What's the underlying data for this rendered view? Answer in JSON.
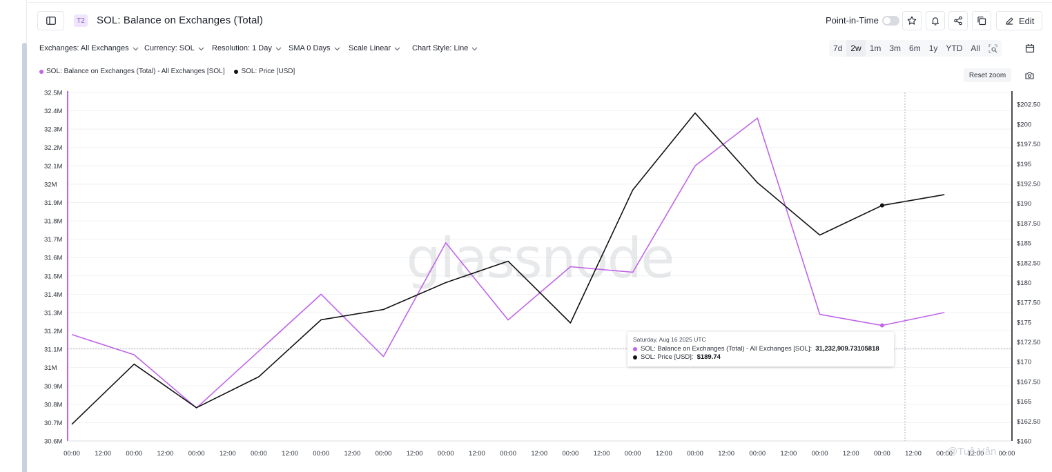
{
  "header": {
    "tier_badge": "T2",
    "title": "SOL: Balance on Exchanges (Total)",
    "point_in_time_label": "Point-in-Time",
    "edit_label": "Edit"
  },
  "toolbar": {
    "exchanges": "Exchanges: All Exchanges",
    "currency": "Currency: SOL",
    "resolution": "Resolution: 1 Day",
    "sma": "SMA 0 Days",
    "scale": "Scale Linear",
    "chart_style": "Chart Style: Line",
    "ranges": [
      "7d",
      "2w",
      "1m",
      "3m",
      "6m",
      "1y",
      "YTD",
      "All"
    ],
    "active_range": "2w"
  },
  "reset_zoom_label": "Reset zoom",
  "watermark": "glassnode",
  "credit": "@Tuệ Vân",
  "tooltip": {
    "date": "Saturday, Aug 16 2025 UTC",
    "balance_label": "SOL: Balance on Exchanges (Total) - All Exchanges [SOL]:",
    "balance_value": "31,232,909.73105818",
    "price_label": "SOL: Price [USD]:",
    "price_value": "$189.74"
  },
  "colors": {
    "balance": "#c064e8",
    "price": "#111111",
    "accent": "#8b5fd0"
  },
  "chart_data": {
    "type": "line",
    "legend_placement": "top-left",
    "grid": true,
    "x_ticks": [
      "00:00",
      "12:00",
      "00:00",
      "12:00",
      "00:00",
      "12:00",
      "00:00",
      "12:00",
      "00:00",
      "12:00",
      "00:00",
      "12:00",
      "00:00",
      "12:00",
      "00:00",
      "12:00",
      "00:00",
      "12:00",
      "00:00",
      "12:00",
      "00:00",
      "12:00",
      "00:00",
      "12:00",
      "00:00",
      "12:00",
      "00:00",
      "12:00",
      "00:00",
      "12:00",
      "00:00"
    ],
    "left_axis": {
      "ylim": [
        30.6,
        32.5
      ],
      "ticks": [
        "30.6M",
        "30.7M",
        "30.8M",
        "30.9M",
        "31M",
        "31.1M",
        "31.2M",
        "31.3M",
        "31.4M",
        "31.5M",
        "31.6M",
        "31.7M",
        "31.8M",
        "31.9M",
        "32M",
        "32.1M",
        "32.2M",
        "32.3M",
        "32.4M",
        "32.5M"
      ]
    },
    "right_axis": {
      "ylim": [
        160,
        204
      ],
      "ticks": [
        "$160",
        "$162.50",
        "$165",
        "$167.50",
        "$170",
        "$172.50",
        "$175",
        "$177.50",
        "$180",
        "$182.50",
        "$185",
        "$187.50",
        "$190",
        "$192.50",
        "$195",
        "$197.50",
        "$200",
        "$202.50"
      ]
    },
    "series": [
      {
        "name": "SOL: Balance on Exchanges (Total) - All Exchanges [SOL]",
        "axis": "left",
        "unit": "M SOL",
        "values": [
          31.18,
          31.07,
          30.78,
          31.09,
          31.4,
          31.06,
          31.68,
          31.26,
          31.55,
          31.52,
          32.1,
          32.36,
          31.29,
          31.23,
          31.3
        ]
      },
      {
        "name": "SOL: Price [USD]",
        "axis": "right",
        "unit": "USD",
        "values": [
          162.1,
          169.7,
          164.2,
          168.1,
          175.3,
          176.6,
          180.0,
          182.7,
          174.9,
          191.7,
          201.4,
          192.6,
          186.0,
          189.74,
          191.1
        ]
      }
    ],
    "highlight_index": 13
  }
}
